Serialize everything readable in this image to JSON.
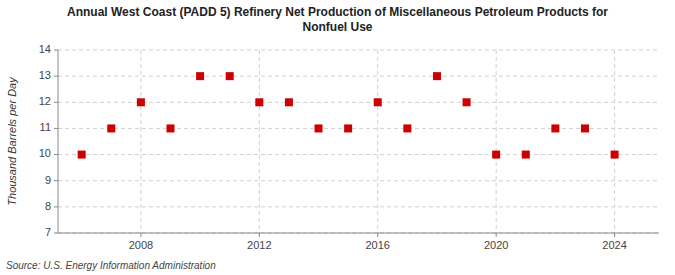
{
  "chart_data": {
    "type": "scatter",
    "title": "Annual West Coast (PADD 5) Refinery Net Production of Miscellaneous Petroleum Products for\nNonfuel Use",
    "ylabel": "Thousand Barrels per Day",
    "source": "Source: U.S. Energy Information Administration",
    "x": [
      2006,
      2007,
      2008,
      2009,
      2010,
      2011,
      2012,
      2013,
      2014,
      2015,
      2016,
      2017,
      2018,
      2019,
      2020,
      2021,
      2022,
      2023,
      2024
    ],
    "values": [
      10.0,
      11.0,
      12.0,
      11.0,
      13.0,
      13.0,
      12.0,
      12.0,
      11.0,
      11.0,
      12.0,
      11.0,
      13.0,
      12.0,
      10.0,
      10.0,
      11.0,
      11.0,
      10.0
    ],
    "xlim": [
      2005.2,
      2025.5
    ],
    "xticks": [
      2008,
      2012,
      2016,
      2020,
      2024
    ],
    "ylim": [
      7,
      14
    ],
    "yticks": [
      7,
      8,
      9,
      10,
      11,
      12,
      13,
      14
    ],
    "color": "#cc0000",
    "marker": "square",
    "grid": true
  }
}
